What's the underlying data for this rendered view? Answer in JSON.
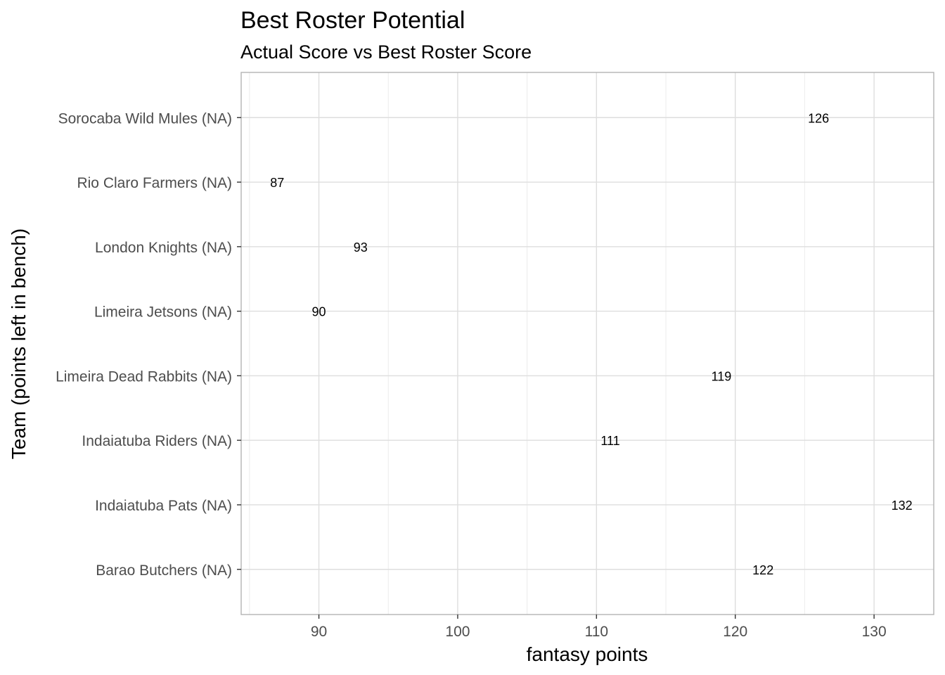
{
  "chart_data": {
    "type": "scatter",
    "title": "Best Roster Potential",
    "subtitle": "Actual Score vs Best Roster Score",
    "xlabel": "fantasy points",
    "ylabel": "Team (points left in bench)",
    "xlim": [
      84.4,
      134.3
    ],
    "x_ticks": [
      90,
      100,
      110,
      120,
      130
    ],
    "grid": true,
    "legend": "none",
    "categories": [
      "Barao Butchers (NA)",
      "Indaiatuba Pats (NA)",
      "Indaiatuba Riders (NA)",
      "Limeira Dead Rabbits (NA)",
      "Limeira Jetsons (NA)",
      "London Knights (NA)",
      "Rio Claro Farmers (NA)",
      "Sorocaba Wild Mules (NA)"
    ],
    "values": [
      122,
      132,
      111,
      119,
      90,
      93,
      87,
      126
    ],
    "labels": [
      "122",
      "132",
      "111",
      "119",
      "90",
      "93",
      "87",
      "126"
    ],
    "colors": {
      "panel_border": "#b3b3b3",
      "grid_major": "#dedede",
      "grid_minor": "#ececec",
      "tick_text": "#4d4d4d",
      "label_text": "#000000"
    }
  }
}
